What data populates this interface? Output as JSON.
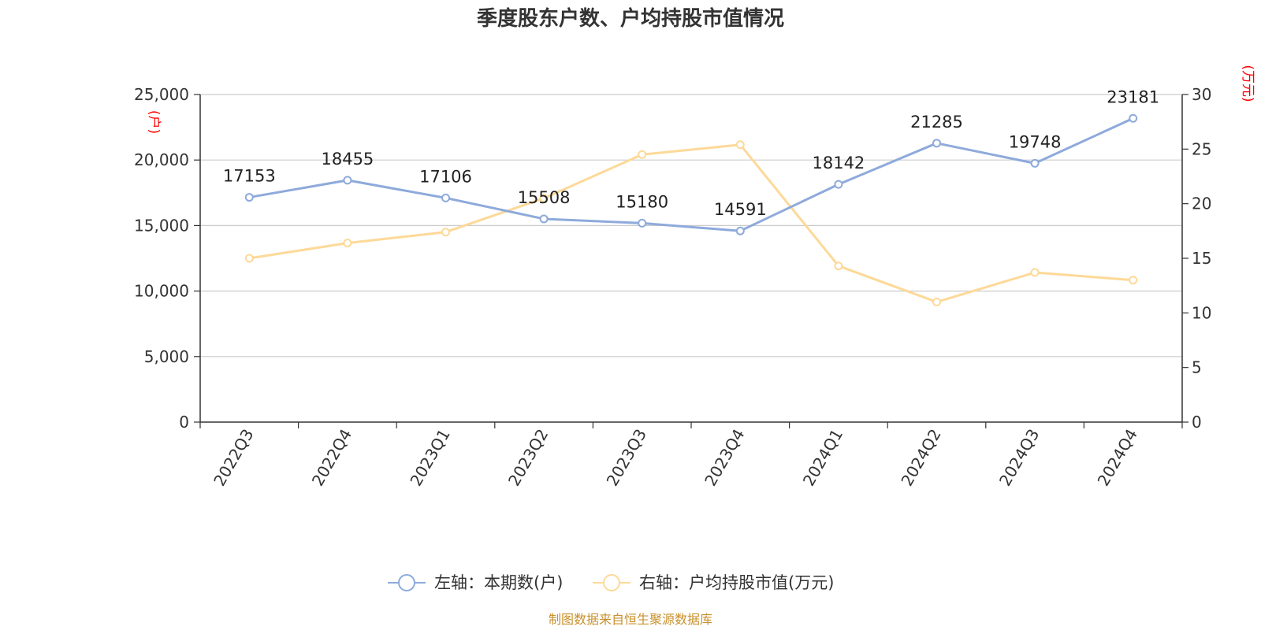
{
  "chart_data": {
    "type": "line",
    "title": "季度股东户数、户均持股市值情况",
    "categories": [
      "2022Q3",
      "2022Q4",
      "2023Q1",
      "2023Q2",
      "2023Q3",
      "2023Q4",
      "2024Q1",
      "2024Q2",
      "2024Q3",
      "2024Q4"
    ],
    "left_axis": {
      "unit": "(户)",
      "range": [
        0,
        25000
      ],
      "ticks": [
        0,
        5000,
        10000,
        15000,
        20000,
        25000
      ],
      "tick_labels": [
        "0",
        "5,000",
        "10,000",
        "15,000",
        "20,000",
        "25,000"
      ]
    },
    "right_axis": {
      "unit": "(万元)",
      "range": [
        0,
        30
      ],
      "ticks": [
        0,
        5,
        10,
        15,
        20,
        25,
        30
      ],
      "tick_labels": [
        "0",
        "5",
        "10",
        "15",
        "20",
        "25",
        "30"
      ]
    },
    "series": [
      {
        "name": "左轴：本期数(户)",
        "axis": "left",
        "color": "#8eaadb",
        "values": [
          17153,
          18455,
          17106,
          15508,
          15180,
          14591,
          18142,
          21285,
          19748,
          23181
        ],
        "labels": [
          "17153",
          "18455",
          "17106",
          "15508",
          "15180",
          "14591",
          "18142",
          "21285",
          "19748",
          "23181"
        ]
      },
      {
        "name": "右轴：户均持股市值(万元)",
        "axis": "right",
        "color": "#fdd998",
        "values": [
          15.0,
          16.4,
          17.4,
          20.5,
          24.5,
          25.4,
          14.3,
          11.0,
          13.7,
          13.0
        ]
      }
    ],
    "grid": true,
    "legend_position": "bottom-center"
  },
  "footer": {
    "source": "制图数据来自恒生聚源数据库"
  }
}
